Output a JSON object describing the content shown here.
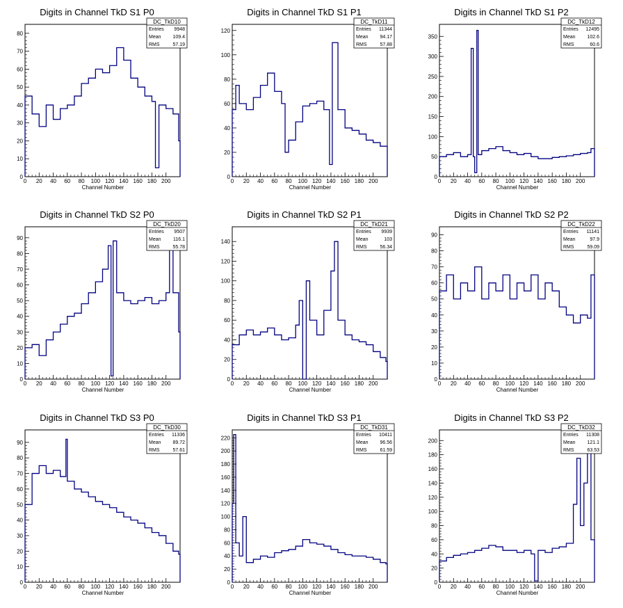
{
  "chart_data": [
    {
      "type": "line",
      "title": "Digits in Channel TkD S1 P0",
      "xlabel": "Channel Number",
      "ylabel": "",
      "xlim": [
        0,
        220
      ],
      "ylim": [
        0,
        85
      ],
      "xticks": [
        0,
        20,
        40,
        60,
        80,
        100,
        120,
        140,
        160,
        180,
        200
      ],
      "yticks": [
        0,
        10,
        20,
        30,
        40,
        50,
        60,
        70,
        80
      ],
      "stats": {
        "name": "DC_TkD10",
        "entries": "9948",
        "mean": "109.4",
        "rms": "57.19"
      },
      "x": [
        0,
        10,
        20,
        30,
        40,
        50,
        60,
        70,
        80,
        90,
        100,
        110,
        120,
        130,
        140,
        150,
        160,
        170,
        180,
        185,
        190,
        200,
        210,
        218
      ],
      "values": [
        45,
        35,
        28,
        40,
        32,
        38,
        40,
        45,
        52,
        55,
        60,
        58,
        62,
        72,
        65,
        55,
        50,
        45,
        42,
        5,
        40,
        38,
        35,
        20
      ]
    },
    {
      "type": "line",
      "title": "Digits in Channel TkD S1 P1",
      "xlabel": "Channel Number",
      "ylabel": "",
      "xlim": [
        0,
        220
      ],
      "ylim": [
        0,
        125
      ],
      "xticks": [
        0,
        20,
        40,
        60,
        80,
        100,
        120,
        140,
        160,
        180,
        200
      ],
      "yticks": [
        0,
        20,
        40,
        60,
        80,
        100,
        120
      ],
      "stats": {
        "name": "DC_TkD11",
        "entries": "11344",
        "mean": "94.17",
        "rms": "57.88"
      },
      "x": [
        0,
        5,
        10,
        20,
        30,
        40,
        50,
        60,
        70,
        75,
        80,
        90,
        100,
        110,
        120,
        130,
        138,
        142,
        150,
        160,
        170,
        180,
        190,
        200,
        210,
        218
      ],
      "values": [
        55,
        75,
        60,
        55,
        65,
        75,
        85,
        70,
        60,
        20,
        30,
        45,
        58,
        60,
        62,
        55,
        10,
        110,
        55,
        40,
        38,
        35,
        30,
        28,
        25,
        25
      ]
    },
    {
      "type": "line",
      "title": "Digits in Channel TkD S1 P2",
      "xlabel": "Channel Number",
      "ylabel": "",
      "xlim": [
        0,
        220
      ],
      "ylim": [
        0,
        380
      ],
      "xticks": [
        0,
        20,
        40,
        60,
        80,
        100,
        120,
        140,
        160,
        180,
        200
      ],
      "yticks": [
        0,
        50,
        100,
        150,
        200,
        250,
        300,
        350
      ],
      "stats": {
        "name": "DC_TkD12",
        "entries": "12495",
        "mean": "102.6",
        "rms": "60.6"
      },
      "x": [
        0,
        10,
        20,
        30,
        40,
        45,
        48,
        50,
        53,
        55,
        60,
        70,
        80,
        90,
        100,
        110,
        120,
        130,
        140,
        150,
        160,
        170,
        180,
        190,
        200,
        210,
        215
      ],
      "values": [
        50,
        55,
        60,
        50,
        55,
        320,
        50,
        10,
        365,
        55,
        65,
        70,
        75,
        65,
        60,
        55,
        58,
        50,
        45,
        45,
        48,
        50,
        52,
        55,
        58,
        60,
        70
      ]
    },
    {
      "type": "line",
      "title": "Digits in Channel TkD S2 P0",
      "xlabel": "Channel Number",
      "ylabel": "",
      "xlim": [
        0,
        220
      ],
      "ylim": [
        0,
        97
      ],
      "xticks": [
        0,
        20,
        40,
        60,
        80,
        100,
        120,
        140,
        160,
        180,
        200
      ],
      "yticks": [
        0,
        10,
        20,
        30,
        40,
        50,
        60,
        70,
        80,
        90
      ],
      "stats": {
        "name": "DC_TkD20",
        "entries": "9507",
        "mean": "116.1",
        "rms": "55.78"
      },
      "x": [
        0,
        10,
        20,
        30,
        40,
        50,
        60,
        70,
        80,
        90,
        100,
        110,
        118,
        122,
        125,
        130,
        140,
        150,
        160,
        170,
        180,
        190,
        200,
        205,
        210,
        218
      ],
      "values": [
        20,
        22,
        15,
        25,
        30,
        35,
        40,
        42,
        48,
        55,
        62,
        70,
        85,
        2,
        88,
        55,
        50,
        48,
        50,
        52,
        48,
        50,
        55,
        90,
        55,
        30
      ]
    },
    {
      "type": "line",
      "title": "Digits in Channel TkD S2 P1",
      "xlabel": "Channel Number",
      "ylabel": "",
      "xlim": [
        0,
        220
      ],
      "ylim": [
        0,
        155
      ],
      "xticks": [
        0,
        20,
        40,
        60,
        80,
        100,
        120,
        140,
        160,
        180,
        200
      ],
      "yticks": [
        0,
        20,
        40,
        60,
        80,
        100,
        120,
        140
      ],
      "stats": {
        "name": "DC_TkD21",
        "entries": "9939",
        "mean": "103",
        "rms": "56.34"
      },
      "x": [
        0,
        10,
        20,
        30,
        40,
        50,
        60,
        70,
        80,
        90,
        95,
        100,
        105,
        110,
        120,
        130,
        140,
        145,
        150,
        160,
        170,
        180,
        190,
        200,
        210,
        218
      ],
      "values": [
        35,
        45,
        50,
        45,
        48,
        52,
        45,
        40,
        42,
        55,
        80,
        0,
        100,
        60,
        45,
        70,
        110,
        140,
        60,
        45,
        40,
        38,
        35,
        28,
        22,
        18
      ]
    },
    {
      "type": "line",
      "title": "Digits in Channel TkD S2 P2",
      "xlabel": "Channel Number",
      "ylabel": "",
      "xlim": [
        0,
        220
      ],
      "ylim": [
        0,
        95
      ],
      "xticks": [
        0,
        20,
        40,
        60,
        80,
        100,
        120,
        140,
        160,
        180,
        200
      ],
      "yticks": [
        0,
        10,
        20,
        30,
        40,
        50,
        60,
        70,
        80,
        90
      ],
      "stats": {
        "name": "DC_TkD22",
        "entries": "11141",
        "mean": "97.9",
        "rms": "59.09"
      },
      "x": [
        0,
        10,
        20,
        30,
        40,
        50,
        60,
        70,
        80,
        90,
        100,
        110,
        120,
        130,
        140,
        150,
        160,
        170,
        180,
        190,
        200,
        210,
        215
      ],
      "values": [
        55,
        65,
        50,
        60,
        55,
        70,
        50,
        60,
        55,
        65,
        50,
        60,
        55,
        65,
        50,
        60,
        55,
        45,
        40,
        35,
        40,
        38,
        65
      ]
    },
    {
      "type": "line",
      "title": "Digits in Channel TkD S3 P0",
      "xlabel": "Channel Number",
      "ylabel": "",
      "xlim": [
        0,
        220
      ],
      "ylim": [
        0,
        98
      ],
      "xticks": [
        0,
        20,
        40,
        60,
        80,
        100,
        120,
        140,
        160,
        180,
        200
      ],
      "yticks": [
        0,
        10,
        20,
        30,
        40,
        50,
        60,
        70,
        80,
        90
      ],
      "stats": {
        "name": "DC_TkD30",
        "entries": "11336",
        "mean": "89.72",
        "rms": "57.61"
      },
      "x": [
        0,
        10,
        20,
        30,
        40,
        50,
        58,
        60,
        70,
        80,
        90,
        100,
        110,
        120,
        130,
        140,
        150,
        160,
        170,
        180,
        190,
        200,
        210,
        218
      ],
      "values": [
        50,
        70,
        75,
        70,
        72,
        68,
        92,
        65,
        60,
        58,
        55,
        52,
        50,
        48,
        45,
        42,
        40,
        38,
        35,
        32,
        30,
        25,
        20,
        18
      ]
    },
    {
      "type": "line",
      "title": "Digits in Channel TkD S3 P1",
      "xlabel": "Channel Number",
      "ylabel": "",
      "xlim": [
        0,
        220
      ],
      "ylim": [
        0,
        232
      ],
      "xticks": [
        0,
        20,
        40,
        60,
        80,
        100,
        120,
        140,
        160,
        180,
        200
      ],
      "yticks": [
        0,
        20,
        40,
        60,
        80,
        100,
        120,
        140,
        160,
        180,
        200,
        220
      ],
      "stats": {
        "name": "DC_TkD31",
        "entries": "10411",
        "mean": "96.56",
        "rms": "61.59"
      },
      "x": [
        0,
        2,
        5,
        10,
        15,
        20,
        30,
        40,
        50,
        60,
        70,
        80,
        90,
        100,
        110,
        120,
        130,
        140,
        150,
        160,
        170,
        180,
        190,
        200,
        210,
        218
      ],
      "values": [
        120,
        225,
        60,
        40,
        100,
        30,
        35,
        40,
        38,
        45,
        48,
        50,
        55,
        65,
        60,
        58,
        55,
        50,
        45,
        42,
        40,
        40,
        38,
        35,
        30,
        28
      ]
    },
    {
      "type": "line",
      "title": "Digits in Channel TkD S3 P2",
      "xlabel": "Channel Number",
      "ylabel": "",
      "xlim": [
        0,
        220
      ],
      "ylim": [
        0,
        215
      ],
      "xticks": [
        0,
        20,
        40,
        60,
        80,
        100,
        120,
        140,
        160,
        180,
        200
      ],
      "yticks": [
        0,
        20,
        40,
        60,
        80,
        100,
        120,
        140,
        160,
        180,
        200
      ],
      "stats": {
        "name": "DC_TkD32",
        "entries": "11308",
        "mean": "121.1",
        "rms": "63.53"
      },
      "x": [
        0,
        10,
        20,
        30,
        40,
        50,
        60,
        70,
        80,
        90,
        100,
        110,
        120,
        130,
        135,
        140,
        150,
        160,
        170,
        180,
        190,
        195,
        200,
        205,
        210,
        215
      ],
      "values": [
        30,
        35,
        38,
        40,
        42,
        45,
        48,
        52,
        50,
        45,
        45,
        42,
        45,
        40,
        2,
        45,
        42,
        48,
        50,
        55,
        110,
        175,
        80,
        140,
        200,
        60
      ]
    }
  ]
}
